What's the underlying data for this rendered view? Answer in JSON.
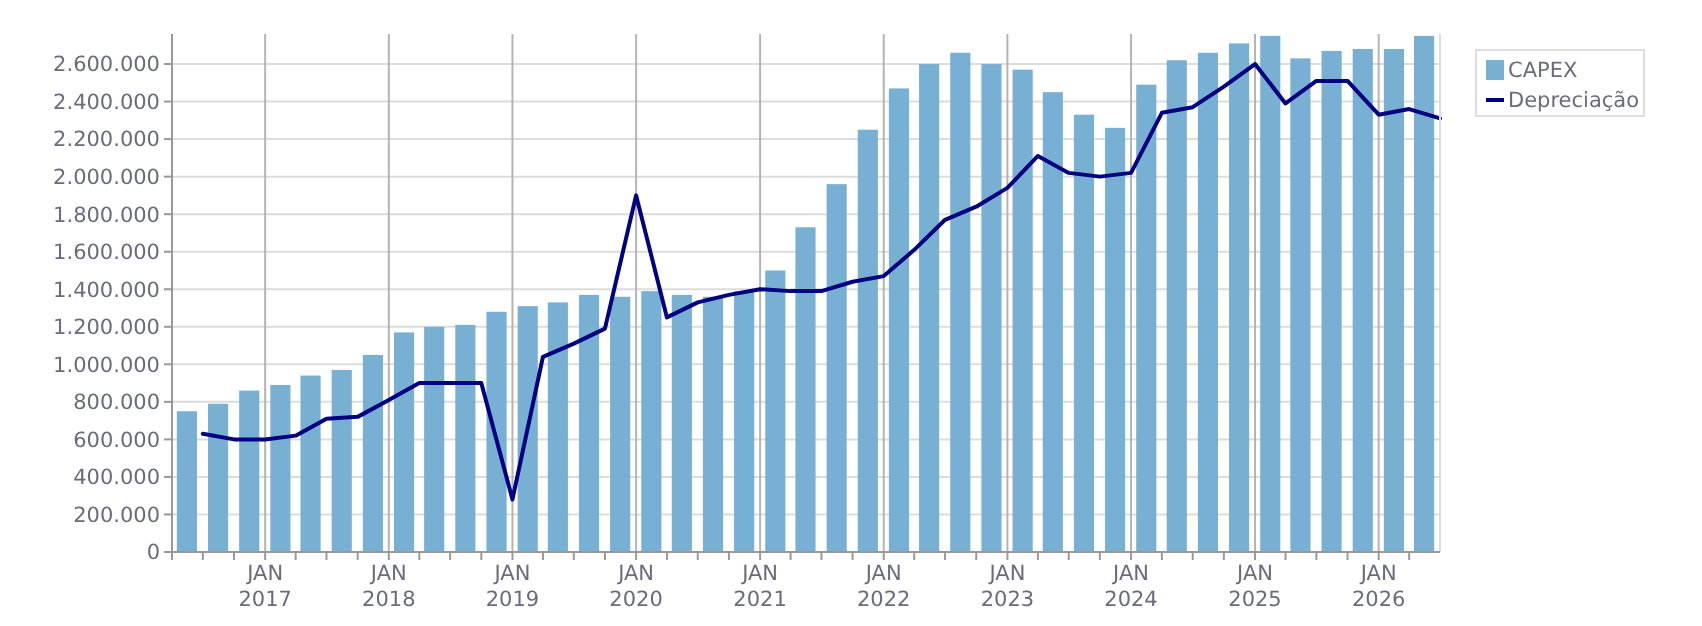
{
  "chart_data": {
    "type": "bar",
    "series": [
      {
        "name": "CAPEX",
        "color": "#77b0d3",
        "x": [
          "2016-05-15",
          "2016-08-15",
          "2016-11-15",
          "2017-02-15",
          "2017-05-15",
          "2017-08-15",
          "2017-11-15",
          "2018-02-15",
          "2018-05-15",
          "2018-08-15",
          "2018-11-15",
          "2019-02-15",
          "2019-05-15",
          "2019-08-15",
          "2019-11-15",
          "2020-02-15",
          "2020-05-15",
          "2020-08-15",
          "2020-11-15",
          "2021-02-15",
          "2021-05-15",
          "2021-08-15",
          "2021-11-15",
          "2022-02-15",
          "2022-05-15",
          "2022-08-15",
          "2022-11-15",
          "2023-02-15",
          "2023-05-15",
          "2023-08-15",
          "2023-11-15",
          "2024-02-15",
          "2024-05-15",
          "2024-08-15",
          "2024-11-15",
          "2025-02-15",
          "2025-05-15",
          "2025-08-15",
          "2025-11-15",
          "2026-02-15",
          "2026-05-15"
        ],
        "values": [
          750000,
          790000,
          860000,
          890000,
          940000,
          970000,
          1050000,
          1170000,
          1200000,
          1210000,
          1280000,
          1310000,
          1330000,
          1370000,
          1360000,
          1390000,
          1370000,
          1360000,
          1390000,
          1500000,
          1730000,
          1960000,
          2250000,
          2470000,
          2600000,
          2660000,
          2600000,
          2570000,
          2450000,
          2330000,
          2260000,
          2490000,
          2620000,
          2660000,
          2710000,
          2750000,
          2630000,
          2670000,
          2680000,
          2680000,
          2750000
        ]
      },
      {
        "name": "Depreciação",
        "type": "line",
        "color": "#000080",
        "x": [
          "2016-07-01",
          "2016-10-01",
          "2017-01-01",
          "2017-04-01",
          "2017-07-01",
          "2017-10-01",
          "2018-01-01",
          "2018-04-01",
          "2018-07-01",
          "2018-10-01",
          "2019-01-01",
          "2019-04-01",
          "2019-07-01",
          "2019-10-01",
          "2020-01-01",
          "2020-04-01",
          "2020-07-01",
          "2020-10-01",
          "2021-01-01",
          "2021-04-01",
          "2021-07-01",
          "2021-10-01",
          "2022-01-01",
          "2022-04-01",
          "2022-07-01",
          "2022-10-01",
          "2023-01-01",
          "2023-04-01",
          "2023-07-01",
          "2023-10-01",
          "2024-01-01",
          "2024-04-01",
          "2024-07-01",
          "2024-10-01",
          "2025-01-01",
          "2025-04-01",
          "2025-07-01",
          "2025-10-01",
          "2026-01-01",
          "2026-04-01",
          "2026-07-01"
        ],
        "values": [
          630000,
          600000,
          600000,
          620000,
          710000,
          720000,
          810000,
          900000,
          900000,
          900000,
          280000,
          1040000,
          1110000,
          1190000,
          1900000,
          1250000,
          1330000,
          1370000,
          1400000,
          1390000,
          1390000,
          1440000,
          1470000,
          1610000,
          1770000,
          1840000,
          1940000,
          2110000,
          2020000,
          2000000,
          2020000,
          2340000,
          2370000,
          2480000,
          2600000,
          2390000,
          2510000,
          2510000,
          2330000,
          2360000,
          2310000
        ]
      }
    ],
    "xlim": [
      "2016-04-01",
      "2026-07-01"
    ],
    "xticks": [
      {
        "value": "2016-04-01",
        "label": null
      },
      {
        "value": "2016-07-01",
        "label": null
      },
      {
        "value": "2016-10-01",
        "label": null
      },
      {
        "value": "2017-01-01",
        "label": "JAN\n2017"
      },
      {
        "value": "2017-04-01",
        "label": null
      },
      {
        "value": "2017-07-01",
        "label": null
      },
      {
        "value": "2017-10-01",
        "label": null
      },
      {
        "value": "2018-01-01",
        "label": "JAN\n2018"
      },
      {
        "value": "2018-04-01",
        "label": null
      },
      {
        "value": "2018-07-01",
        "label": null
      },
      {
        "value": "2018-10-01",
        "label": null
      },
      {
        "value": "2019-01-01",
        "label": "JAN\n2019"
      },
      {
        "value": "2019-04-01",
        "label": null
      },
      {
        "value": "2019-07-01",
        "label": null
      },
      {
        "value": "2019-10-01",
        "label": null
      },
      {
        "value": "2020-01-01",
        "label": "JAN\n2020"
      },
      {
        "value": "2020-04-01",
        "label": null
      },
      {
        "value": "2020-07-01",
        "label": null
      },
      {
        "value": "2020-10-01",
        "label": null
      },
      {
        "value": "2021-01-01",
        "label": "JAN\n2021"
      },
      {
        "value": "2021-04-01",
        "label": null
      },
      {
        "value": "2021-07-01",
        "label": null
      },
      {
        "value": "2021-10-01",
        "label": null
      },
      {
        "value": "2022-01-01",
        "label": "JAN\n2022"
      },
      {
        "value": "2022-04-01",
        "label": null
      },
      {
        "value": "2022-07-01",
        "label": null
      },
      {
        "value": "2022-10-01",
        "label": null
      },
      {
        "value": "2023-01-01",
        "label": "JAN\n2023"
      },
      {
        "value": "2023-04-01",
        "label": null
      },
      {
        "value": "2023-07-01",
        "label": null
      },
      {
        "value": "2023-10-01",
        "label": null
      },
      {
        "value": "2024-01-01",
        "label": "JAN\n2024"
      },
      {
        "value": "2024-04-01",
        "label": null
      },
      {
        "value": "2024-07-01",
        "label": null
      },
      {
        "value": "2024-10-01",
        "label": null
      },
      {
        "value": "2025-01-01",
        "label": "JAN\n2025"
      },
      {
        "value": "2025-04-01",
        "label": null
      },
      {
        "value": "2025-07-01",
        "label": null
      },
      {
        "value": "2025-10-01",
        "label": null
      },
      {
        "value": "2026-01-01",
        "label": "JAN\n2026"
      },
      {
        "value": "2026-04-01",
        "label": null
      }
    ],
    "ylim": [
      0,
      2760000
    ],
    "yticks": [
      0,
      {
        "value": 200000,
        "label": "200.000"
      },
      {
        "value": 400000,
        "label": "400.000"
      },
      {
        "value": 600000,
        "label": "600.000"
      },
      {
        "value": 800000,
        "label": "800.000"
      },
      {
        "value": 1000000,
        "label": "1.000.000"
      },
      {
        "value": 1200000,
        "label": "1.200.000"
      },
      {
        "value": 1400000,
        "label": "1.400.000"
      },
      {
        "value": 1600000,
        "label": "1.600.000"
      },
      {
        "value": 1800000,
        "label": "1.800.000"
      },
      {
        "value": 2000000,
        "label": "2.000.000"
      },
      {
        "value": 2200000,
        "label": "2.200.000"
      },
      {
        "value": 2400000,
        "label": "2.400.000"
      },
      {
        "value": 2600000,
        "label": "2.600.000"
      }
    ],
    "grid": true,
    "legend": "top right"
  }
}
